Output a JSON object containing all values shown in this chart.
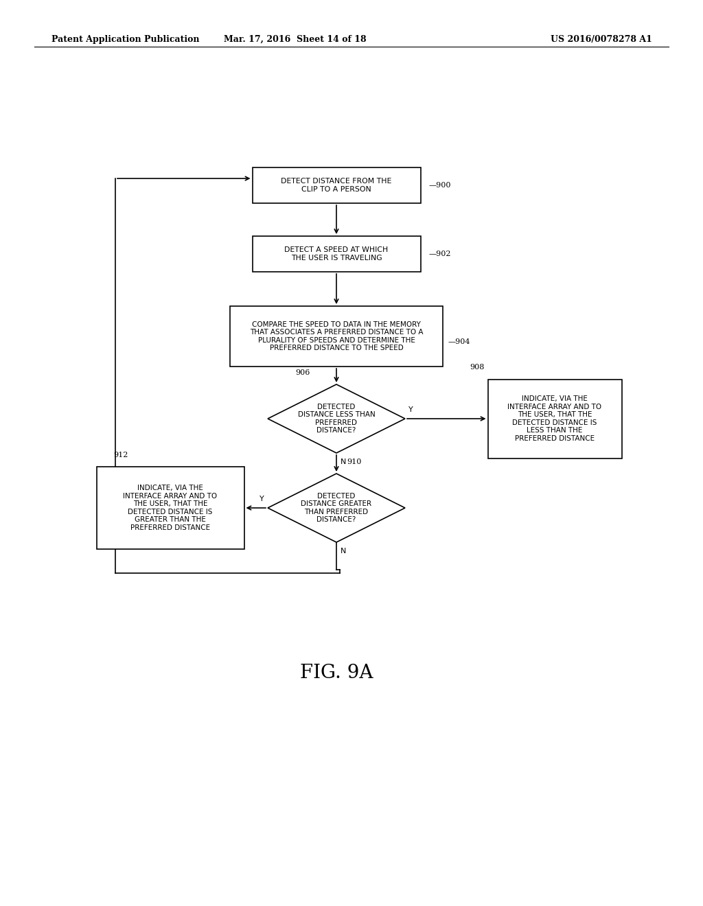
{
  "bg_color": "#ffffff",
  "text_color": "#000000",
  "header_left": "Patent Application Publication",
  "header_mid": "Mar. 17, 2016  Sheet 14 of 18",
  "header_right": "US 2016/0078278 A1",
  "figure_label": "FIG. 9A",
  "node_900_label": "DETECT DISTANCE FROM THE\nCLIP TO A PERSON",
  "node_902_label": "DETECT A SPEED AT WHICH\nTHE USER IS TRAVELING",
  "node_904_label": "COMPARE THE SPEED TO DATA IN THE MEMORY\nTHAT ASSOCIATES A PREFERRED DISTANCE TO A\nPLURALITY OF SPEEDS AND DETERMINE THE\nPREFERRED DISTANCE TO THE SPEED",
  "node_906_label": "DETECTED\nDISTANCE LESS THAN\nPREFERRED\nDISTANCE?",
  "node_908_label": "INDICATE, VIA THE\nINTERFACE ARRAY AND TO\nTHE USER, THAT THE\nDETECTED DISTANCE IS\nLESS THAN THE\nPREFERRED DISTANCE",
  "node_910_label": "DETECTED\nDISTANCE GREATER\nTHAN PREFERRED\nDISTANCE?",
  "node_912_label": "INDICATE, VIA THE\nINTERFACE ARRAY AND TO\nTHE USER, THAT THE\nDETECTED DISTANCE IS\nGREATER THAN THE\nPREFERRED DISTANCE"
}
